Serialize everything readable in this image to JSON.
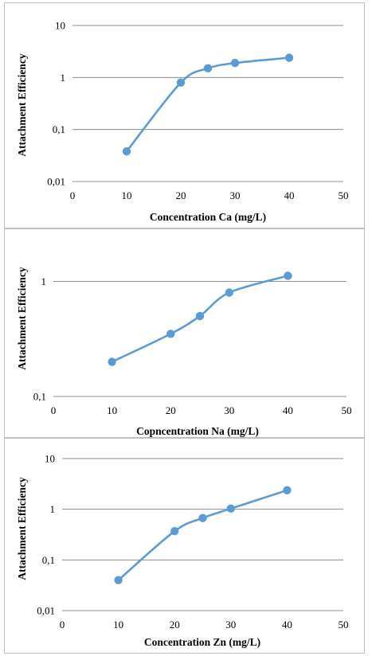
{
  "chart_data": [
    {
      "type": "line",
      "xlabel": "Concentration Ca (mg/L)",
      "ylabel": "Attachment Efficiency",
      "xlim": [
        0,
        50
      ],
      "x_ticks": [
        "0",
        "10",
        "20",
        "30",
        "40",
        "50"
      ],
      "ylim": [
        0.01,
        10
      ],
      "y_scale": "log",
      "y_ticks": [
        "0,01",
        "0,1",
        "1",
        "10"
      ],
      "grid": "horizontal",
      "series": [
        {
          "x": [
            10,
            20,
            25,
            30,
            40
          ],
          "values": [
            0.038,
            0.8,
            1.5,
            1.9,
            2.4
          ]
        }
      ]
    },
    {
      "type": "line",
      "xlabel": "Copncentration Na (mg/L)",
      "ylabel": "Attachment Efficiency",
      "xlim": [
        0,
        50
      ],
      "x_ticks": [
        "0",
        "10",
        "20",
        "30",
        "40",
        "50"
      ],
      "ylim": [
        0.1,
        2
      ],
      "y_scale": "log",
      "y_ticks": [
        "0,1",
        "1"
      ],
      "grid": "horizontal",
      "series": [
        {
          "x": [
            10,
            20,
            25,
            30,
            40
          ],
          "values": [
            0.2,
            0.35,
            0.5,
            0.8,
            1.12
          ]
        }
      ]
    },
    {
      "type": "line",
      "xlabel": "Concentration Zn (mg/L)",
      "ylabel": "Attachment Efficiency",
      "xlim": [
        0,
        50
      ],
      "x_ticks": [
        "0",
        "10",
        "20",
        "30",
        "40",
        "50"
      ],
      "ylim": [
        0.01,
        10
      ],
      "y_scale": "log",
      "y_ticks": [
        "0,01",
        "0,1",
        "1",
        "10"
      ],
      "grid": "horizontal",
      "series": [
        {
          "x": [
            10,
            20,
            25,
            30,
            40
          ],
          "values": [
            0.04,
            0.37,
            0.67,
            1.03,
            2.37
          ]
        }
      ]
    }
  ],
  "colors": {
    "series": "#5b9bd5",
    "grid": "#8c8c8c",
    "border": "#bfbfbf"
  }
}
